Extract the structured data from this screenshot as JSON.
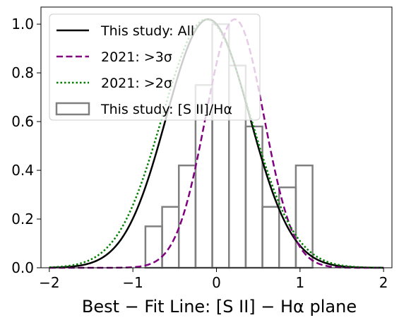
{
  "chart_data": {
    "type": "line",
    "title": "",
    "xlabel": "Best − Fit Line: [S II] − Hα plane",
    "ylabel": "",
    "xlim": [
      -2.1,
      2.1
    ],
    "ylim": [
      0,
      1.07
    ],
    "x_ticks": [
      -2,
      -1,
      0,
      1,
      2
    ],
    "x_tick_labels": [
      "−2",
      "−1",
      "0",
      "1",
      "2"
    ],
    "y_ticks": [
      0.0,
      0.2,
      0.4,
      0.6,
      0.8,
      1.0
    ],
    "y_tick_labels": [
      "0.0",
      "0.2",
      "0.4",
      "0.6",
      "0.8",
      "1.0"
    ],
    "grid": false,
    "legend_position": "upper-left",
    "series": [
      {
        "name": "This study: All",
        "type": "gaussian",
        "mean": -0.1,
        "sigma": 0.5,
        "amplitude": 1.02,
        "color": "#000000",
        "style": "solid",
        "x_range": [
          -2,
          2
        ]
      },
      {
        "name": "2021: >3σ",
        "type": "gaussian",
        "mean": 0.22,
        "sigma": 0.35,
        "amplitude": 1.02,
        "color": "#800080",
        "style": "dashed",
        "x_range": [
          -2,
          2
        ]
      },
      {
        "name": "2021: >2σ",
        "type": "gaussian",
        "mean": -0.12,
        "sigma": 0.53,
        "amplitude": 1.02,
        "color": "#008000",
        "style": "dotted",
        "x_range": [
          -2,
          2
        ]
      }
    ],
    "histogram": {
      "name": "This study: [S II]/Hα",
      "color": "#808080",
      "bins": [
        {
          "x0": -0.85,
          "x1": -0.65,
          "value": 0.17
        },
        {
          "x0": -0.65,
          "x1": -0.45,
          "value": 0.25
        },
        {
          "x0": -0.45,
          "x1": -0.25,
          "value": 0.42
        },
        {
          "x0": -0.25,
          "x1": -0.05,
          "value": 0.75
        },
        {
          "x0": -0.05,
          "x1": 0.15,
          "value": 1.0
        },
        {
          "x0": 0.15,
          "x1": 0.35,
          "value": 0.83
        },
        {
          "x0": 0.35,
          "x1": 0.55,
          "value": 0.58
        },
        {
          "x0": 0.55,
          "x1": 0.75,
          "value": 0.25
        },
        {
          "x0": 0.75,
          "x1": 0.95,
          "value": 0.33
        },
        {
          "x0": 0.95,
          "x1": 1.15,
          "value": 0.42
        }
      ]
    },
    "legend": [
      {
        "label": "This study: All",
        "kind": "line",
        "color": "#000000",
        "style": "solid"
      },
      {
        "label": "2021: >3σ",
        "kind": "line",
        "color": "#800080",
        "style": "dashed"
      },
      {
        "label": "2021: >2σ",
        "kind": "line",
        "color": "#008000",
        "style": "dotted"
      },
      {
        "label": "This study: [S II]/Hα",
        "kind": "patch",
        "color": "#808080",
        "style": "solid"
      }
    ]
  }
}
